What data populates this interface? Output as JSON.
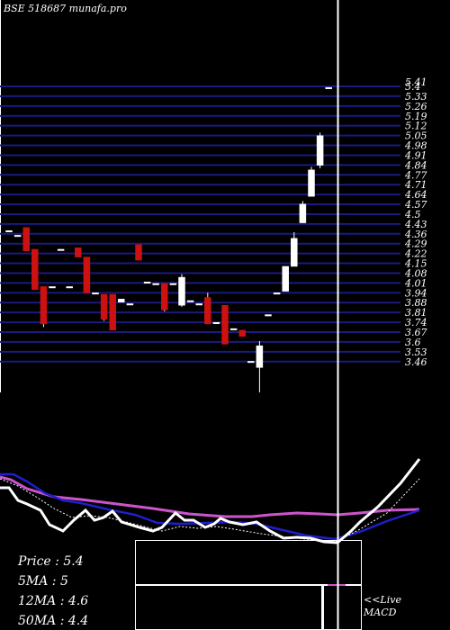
{
  "header": {
    "title": "BSE 518687 munafa.pro"
  },
  "colors": {
    "background": "#000000",
    "grid": "#1a1a80",
    "up": "#ffffff",
    "down": "#cc1111",
    "cursor": "#ffffff",
    "ma_slow": "#1f1fcc",
    "ma_pink": "#cc55cc",
    "price_line": "#ffffff"
  },
  "stats": {
    "price_label": "Price",
    "price_value": "5.4",
    "ma5_label": "5MA",
    "ma5_value": "5",
    "ma12_label": "12MA",
    "ma12_value": "4.6",
    "ma50_label": "50MA",
    "ma50_value": "4.4"
  },
  "macd": {
    "live_label": "<<Live",
    "macd_label": "MACD"
  },
  "chart_data": {
    "type": "candlestick",
    "title": "BSE 518687 munafa.pro",
    "y_ticks": [
      "5.41",
      "5.4",
      "5.33",
      "5.26",
      "5.19",
      "5.12",
      "5.05",
      "4.98",
      "4.91",
      "4.84",
      "4.77",
      "4.71",
      "4.64",
      "4.57",
      "4.5",
      "4.43",
      "4.36",
      "4.29",
      "4.22",
      "4.15",
      "4.08",
      "4.01",
      "3.94",
      "3.88",
      "3.81",
      "3.74",
      "3.67",
      "3.6",
      "3.53",
      "3.46"
    ],
    "ylim": [
      3.44,
      5.43
    ],
    "candles": [
      {
        "o": 4.48,
        "c": 4.48,
        "h": 4.48,
        "l": 4.48
      },
      {
        "o": 4.45,
        "c": 4.45,
        "h": 4.45,
        "l": 4.45
      },
      {
        "o": 4.5,
        "c": 4.35,
        "h": 4.5,
        "l": 4.35
      },
      {
        "o": 4.36,
        "c": 4.1,
        "h": 4.36,
        "l": 4.1
      },
      {
        "o": 4.12,
        "c": 3.88,
        "h": 4.12,
        "l": 3.86
      },
      {
        "o": 4.12,
        "c": 4.12,
        "h": 4.12,
        "l": 4.12
      },
      {
        "o": 4.36,
        "c": 4.36,
        "h": 4.36,
        "l": 4.36
      },
      {
        "o": 4.12,
        "c": 4.12,
        "h": 4.12,
        "l": 4.12
      },
      {
        "o": 4.37,
        "c": 4.31,
        "h": 4.37,
        "l": 4.31
      },
      {
        "o": 4.31,
        "c": 4.08,
        "h": 4.31,
        "l": 4.08
      },
      {
        "o": 4.08,
        "c": 4.08,
        "h": 4.08,
        "l": 4.08
      },
      {
        "o": 4.07,
        "c": 3.91,
        "h": 4.07,
        "l": 3.9
      },
      {
        "o": 4.07,
        "c": 3.84,
        "h": 4.07,
        "l": 3.84
      },
      {
        "o": 4.02,
        "c": 4.04,
        "h": 4.04,
        "l": 4.02
      },
      {
        "o": 4.01,
        "c": 4.01,
        "h": 4.01,
        "l": 4.01
      },
      {
        "o": 4.39,
        "c": 4.29,
        "h": 4.39,
        "l": 4.29
      },
      {
        "o": 4.15,
        "c": 4.15,
        "h": 4.15,
        "l": 4.15
      },
      {
        "o": 4.14,
        "c": 4.14,
        "h": 4.14,
        "l": 4.14
      },
      {
        "o": 4.14,
        "c": 3.97,
        "h": 4.14,
        "l": 3.96
      },
      {
        "o": 4.14,
        "c": 4.14,
        "h": 4.14,
        "l": 4.14
      },
      {
        "o": 4.0,
        "c": 4.18,
        "h": 4.2,
        "l": 3.99
      },
      {
        "o": 4.03,
        "c": 4.03,
        "h": 4.03,
        "l": 4.03
      },
      {
        "o": 4.01,
        "c": 4.01,
        "h": 4.01,
        "l": 4.01
      },
      {
        "o": 4.05,
        "c": 3.88,
        "h": 4.08,
        "l": 3.88
      },
      {
        "o": 3.89,
        "c": 3.89,
        "h": 3.89,
        "l": 3.89
      },
      {
        "o": 4.0,
        "c": 3.75,
        "h": 4.0,
        "l": 3.75
      },
      {
        "o": 3.85,
        "c": 3.85,
        "h": 3.85,
        "l": 3.85
      },
      {
        "o": 3.84,
        "c": 3.8,
        "h": 3.84,
        "l": 3.8
      },
      {
        "o": 3.64,
        "c": 3.64,
        "h": 3.64,
        "l": 3.64
      },
      {
        "o": 3.6,
        "c": 3.74,
        "h": 3.77,
        "l": 3.44
      },
      {
        "o": 3.94,
        "c": 3.94,
        "h": 3.94,
        "l": 3.94
      },
      {
        "o": 4.08,
        "c": 4.08,
        "h": 4.08,
        "l": 4.08
      },
      {
        "o": 4.09,
        "c": 4.25,
        "h": 4.25,
        "l": 4.09
      },
      {
        "o": 4.25,
        "c": 4.43,
        "h": 4.47,
        "l": 4.25
      },
      {
        "o": 4.53,
        "c": 4.65,
        "h": 4.67,
        "l": 4.53
      },
      {
        "o": 4.7,
        "c": 4.87,
        "h": 4.89,
        "l": 4.7
      },
      {
        "o": 4.9,
        "c": 5.09,
        "h": 5.11,
        "l": 4.88
      },
      {
        "o": 5.4,
        "c": 5.4,
        "h": 5.4,
        "l": 5.4
      }
    ]
  }
}
